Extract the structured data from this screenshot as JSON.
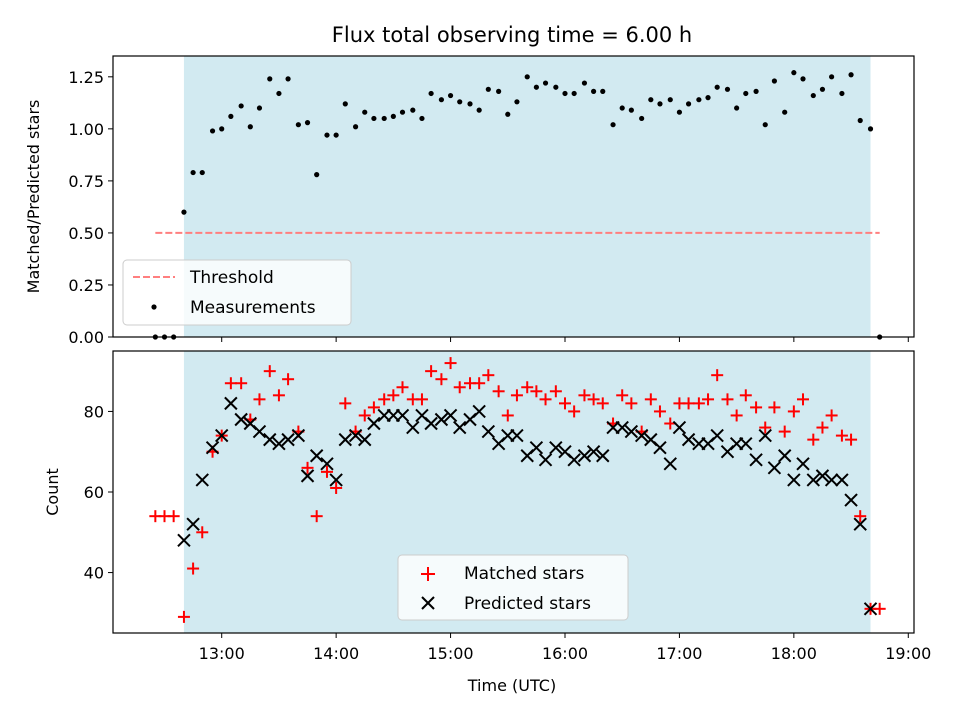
{
  "chart_data": [
    {
      "type": "scatter",
      "panel": "top",
      "title": "Flux total observing time = 6.00 h",
      "xlabel": "",
      "ylabel": "Matched/Predicted stars",
      "xlim_hours": [
        12.05,
        19.05
      ],
      "ylim": [
        0,
        1.35
      ],
      "yticks": [
        0,
        0.25,
        0.5,
        0.75,
        1.0,
        1.25
      ],
      "ytick_labels": [
        "0.00",
        "0.25",
        "0.50",
        "0.75",
        "1.00",
        "1.25"
      ],
      "shaded_interval_hours": [
        12.67,
        18.67
      ],
      "shade_color": "#add8e6",
      "legend": {
        "position": "lower left",
        "entries": [
          "Threshold",
          "Measurements"
        ]
      },
      "threshold": {
        "name": "Threshold",
        "value": 0.5,
        "x_range_hours": [
          12.42,
          18.75
        ],
        "color": "#ff7f7f",
        "style": "dashed"
      },
      "series": [
        {
          "name": "Measurements",
          "color": "#000000",
          "x_hours": [
            12.42,
            12.5,
            12.58,
            12.67,
            12.75,
            12.83,
            12.92,
            13.0,
            13.08,
            13.17,
            13.25,
            13.33,
            13.42,
            13.5,
            13.58,
            13.67,
            13.75,
            13.83,
            13.92,
            14.0,
            14.08,
            14.17,
            14.25,
            14.33,
            14.42,
            14.5,
            14.58,
            14.67,
            14.75,
            14.83,
            14.92,
            15.0,
            15.08,
            15.17,
            15.25,
            15.33,
            15.42,
            15.5,
            15.58,
            15.67,
            15.75,
            15.83,
            15.92,
            16.0,
            16.08,
            16.17,
            16.25,
            16.33,
            16.42,
            16.5,
            16.58,
            16.67,
            16.75,
            16.83,
            16.92,
            17.0,
            17.08,
            17.17,
            17.25,
            17.33,
            17.42,
            17.5,
            17.58,
            17.67,
            17.75,
            17.83,
            17.92,
            18.0,
            18.08,
            18.17,
            18.25,
            18.33,
            18.42,
            18.5,
            18.58,
            18.67,
            18.75
          ],
          "values": [
            0.0,
            0.0,
            0.0,
            0.6,
            0.79,
            0.79,
            0.99,
            1.0,
            1.06,
            1.11,
            1.01,
            1.1,
            1.24,
            1.17,
            1.24,
            1.02,
            1.03,
            0.78,
            0.97,
            0.97,
            1.12,
            1.01,
            1.08,
            1.05,
            1.05,
            1.06,
            1.08,
            1.09,
            1.05,
            1.17,
            1.14,
            1.16,
            1.13,
            1.12,
            1.09,
            1.19,
            1.18,
            1.07,
            1.13,
            1.25,
            1.2,
            1.22,
            1.2,
            1.17,
            1.17,
            1.22,
            1.18,
            1.18,
            1.02,
            1.1,
            1.09,
            1.05,
            1.14,
            1.12,
            1.14,
            1.08,
            1.12,
            1.14,
            1.15,
            1.2,
            1.19,
            1.1,
            1.17,
            1.18,
            1.02,
            1.23,
            1.08,
            1.27,
            1.24,
            1.16,
            1.19,
            1.25,
            1.17,
            1.26,
            1.04,
            1.0,
            0.0
          ]
        }
      ]
    },
    {
      "type": "scatter",
      "panel": "bottom",
      "title": "",
      "xlabel": "Time (UTC)",
      "ylabel": "Count",
      "xlim_hours": [
        12.05,
        19.05
      ],
      "ylim": [
        25,
        95
      ],
      "yticks": [
        40,
        60,
        80
      ],
      "ytick_labels": [
        "40",
        "60",
        "80"
      ],
      "xticks_hours": [
        13,
        14,
        15,
        16,
        17,
        18,
        19
      ],
      "xtick_labels": [
        "13:00",
        "14:00",
        "15:00",
        "16:00",
        "17:00",
        "18:00",
        "19:00"
      ],
      "shaded_interval_hours": [
        12.67,
        18.67
      ],
      "shade_color": "#add8e6",
      "legend": {
        "position": "lower center",
        "entries": [
          "Matched stars",
          "Predicted stars"
        ]
      },
      "series": [
        {
          "name": "Matched stars",
          "marker": "plus",
          "color": "#ff0000",
          "x_hours": [
            12.42,
            12.5,
            12.58,
            12.67,
            12.75,
            12.83,
            12.92,
            13.0,
            13.08,
            13.17,
            13.25,
            13.33,
            13.42,
            13.5,
            13.58,
            13.67,
            13.75,
            13.83,
            13.92,
            14.0,
            14.08,
            14.17,
            14.25,
            14.33,
            14.42,
            14.5,
            14.58,
            14.67,
            14.75,
            14.83,
            14.92,
            15.0,
            15.08,
            15.17,
            15.25,
            15.33,
            15.42,
            15.5,
            15.58,
            15.67,
            15.75,
            15.83,
            15.92,
            16.0,
            16.08,
            16.17,
            16.25,
            16.33,
            16.42,
            16.5,
            16.58,
            16.67,
            16.75,
            16.83,
            16.92,
            17.0,
            17.08,
            17.17,
            17.25,
            17.33,
            17.42,
            17.5,
            17.58,
            17.67,
            17.75,
            17.83,
            17.92,
            18.0,
            18.08,
            18.17,
            18.25,
            18.33,
            18.42,
            18.5,
            18.58,
            18.67,
            18.75
          ],
          "values": [
            54,
            54,
            54,
            29,
            41,
            50,
            70,
            74,
            87,
            87,
            78,
            83,
            90,
            84,
            88,
            75,
            66,
            54,
            65,
            61,
            82,
            75,
            79,
            81,
            83,
            84,
            86,
            83,
            83,
            90,
            88,
            92,
            86,
            87,
            87,
            89,
            85,
            79,
            84,
            86,
            85,
            83,
            85,
            82,
            80,
            84,
            83,
            82,
            77,
            84,
            82,
            75,
            83,
            80,
            77,
            82,
            82,
            82,
            83,
            89,
            83,
            79,
            84,
            81,
            76,
            81,
            75,
            80,
            83,
            73,
            76,
            79,
            74,
            73,
            54,
            31,
            31
          ]
        },
        {
          "name": "Predicted stars",
          "marker": "x",
          "color": "#000000",
          "x_hours": [
            12.67,
            12.75,
            12.83,
            12.92,
            13.0,
            13.08,
            13.17,
            13.25,
            13.33,
            13.42,
            13.5,
            13.58,
            13.67,
            13.75,
            13.83,
            13.92,
            14.0,
            14.08,
            14.17,
            14.25,
            14.33,
            14.42,
            14.5,
            14.58,
            14.67,
            14.75,
            14.83,
            14.92,
            15.0,
            15.08,
            15.17,
            15.25,
            15.33,
            15.42,
            15.5,
            15.58,
            15.67,
            15.75,
            15.83,
            15.92,
            16.0,
            16.08,
            16.17,
            16.25,
            16.33,
            16.42,
            16.5,
            16.58,
            16.67,
            16.75,
            16.83,
            16.92,
            17.0,
            17.08,
            17.17,
            17.25,
            17.33,
            17.42,
            17.5,
            17.58,
            17.67,
            17.75,
            17.83,
            17.92,
            18.0,
            18.08,
            18.17,
            18.25,
            18.33,
            18.42,
            18.5,
            18.58,
            18.67
          ],
          "values": [
            48,
            52,
            63,
            71,
            74,
            82,
            78,
            77,
            75,
            73,
            72,
            73,
            74,
            64,
            69,
            67,
            63,
            73,
            74,
            73,
            77,
            79,
            79,
            79,
            76,
            79,
            77,
            78,
            79,
            76,
            78,
            80,
            75,
            72,
            74,
            74,
            69,
            71,
            68,
            71,
            70,
            68,
            69,
            70,
            69,
            76,
            76,
            75,
            74,
            73,
            71,
            67,
            76,
            73,
            72,
            72,
            74,
            70,
            72,
            72,
            68,
            74,
            66,
            69,
            63,
            67,
            63,
            64,
            63,
            63,
            58,
            52,
            31
          ]
        }
      ]
    }
  ]
}
